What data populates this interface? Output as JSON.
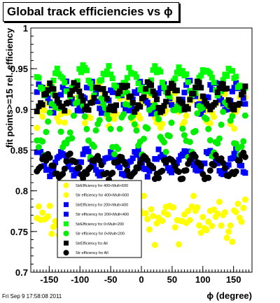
{
  "chart_data": {
    "type": "scatter",
    "title": "Global track efficiencies vs ϕ",
    "xlabel": "ϕ (degree)",
    "ylabel": "fit points>=15 rel. efficiency",
    "xlim": [
      -180,
      180
    ],
    "ylim": [
      0.7,
      1.0
    ],
    "xticks": [
      -150,
      -100,
      -50,
      0,
      50,
      100,
      150
    ],
    "yticks": [
      0.7,
      0.75,
      0.8,
      0.85,
      0.9,
      0.95,
      1
    ],
    "ytick_labels": [
      "0.7",
      "0.75",
      "0.8",
      "0.85",
      "0.9",
      "0.95",
      "1"
    ],
    "grid": false,
    "legend_position": "bottom-left",
    "series": [
      {
        "name": "StrEfficiency for 400<Mult<600",
        "color": "#ffff00",
        "marker": "circle",
        "level": 0.905,
        "amp": 0.018,
        "noise": 0.012
      },
      {
        "name": "Str efficiency for 400<Mult<600",
        "color": "#ffff00",
        "marker": "circle",
        "level": 0.765,
        "amp": 0.015,
        "noise": 0.018
      },
      {
        "name": "StrEfficiency for 200<Mult<400",
        "color": "#0000ff",
        "marker": "square",
        "level": 0.915,
        "amp": 0.015,
        "noise": 0.006
      },
      {
        "name": "Str efficiency for 200<Mult<400",
        "color": "#0000ff",
        "marker": "square",
        "level": 0.835,
        "amp": 0.012,
        "noise": 0.006
      },
      {
        "name": "StrEfficiency for 0<Mult<200",
        "color": "#00ff00",
        "marker": "square",
        "level": 0.935,
        "amp": 0.014,
        "noise": 0.006
      },
      {
        "name": "Str efficiency for 0<Mult<200",
        "color": "#00ee00",
        "marker": "circle",
        "level": 0.88,
        "amp": 0.03,
        "noise": 0.012
      },
      {
        "name": "StrEfficiency for All",
        "color": "#000000",
        "marker": "square",
        "level": 0.915,
        "amp": 0.015,
        "noise": 0.005
      },
      {
        "name": "Str efficiency for All",
        "color": "#000000",
        "marker": "circle",
        "level": 0.83,
        "amp": 0.012,
        "noise": 0.005
      }
    ],
    "phi_start": -170,
    "phi_step": 3,
    "phi_count": 114
  },
  "footer": {
    "timestamp": "Fri Sep  9 17:58:08 2011"
  }
}
